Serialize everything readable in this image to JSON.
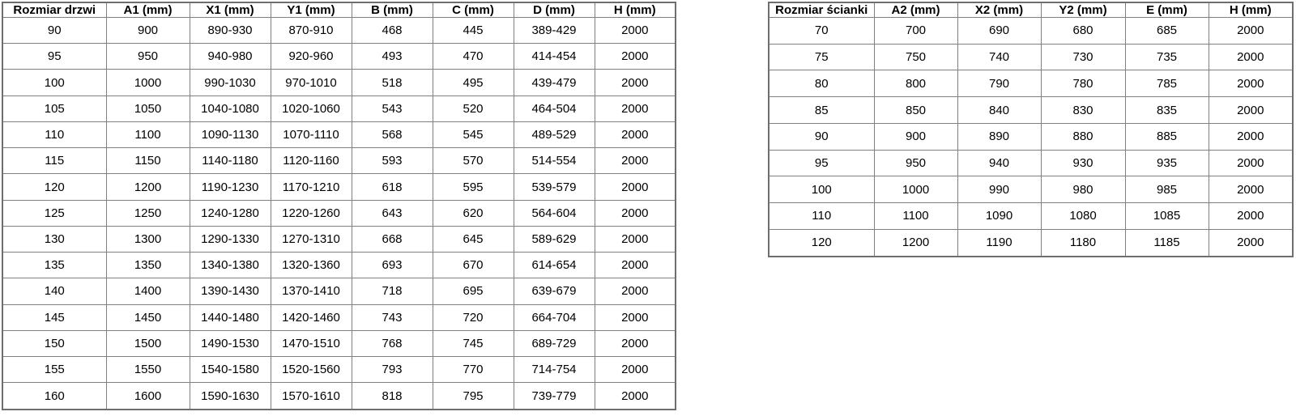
{
  "page": {
    "background_color": "#ffffff",
    "grid_border_color": "#808080",
    "outer_border_color": "#6e6e6e",
    "text_color": "#000000"
  },
  "tables": {
    "doors": {
      "title": "Rozmiar drzwi",
      "headers": [
        "Rozmiar drzwi",
        "A1 (mm)",
        "X1 (mm)",
        "Y1 (mm)",
        "B (mm)",
        "C (mm)",
        "D (mm)",
        "H (mm)"
      ],
      "rows": [
        [
          "90",
          "900",
          "890-930",
          "870-910",
          "468",
          "445",
          "389-429",
          "2000"
        ],
        [
          "95",
          "950",
          "940-980",
          "920-960",
          "493",
          "470",
          "414-454",
          "2000"
        ],
        [
          "100",
          "1000",
          "990-1030",
          "970-1010",
          "518",
          "495",
          "439-479",
          "2000"
        ],
        [
          "105",
          "1050",
          "1040-1080",
          "1020-1060",
          "543",
          "520",
          "464-504",
          "2000"
        ],
        [
          "110",
          "1100",
          "1090-1130",
          "1070-1110",
          "568",
          "545",
          "489-529",
          "2000"
        ],
        [
          "115",
          "1150",
          "1140-1180",
          "1120-1160",
          "593",
          "570",
          "514-554",
          "2000"
        ],
        [
          "120",
          "1200",
          "1190-1230",
          "1170-1210",
          "618",
          "595",
          "539-579",
          "2000"
        ],
        [
          "125",
          "1250",
          "1240-1280",
          "1220-1260",
          "643",
          "620",
          "564-604",
          "2000"
        ],
        [
          "130",
          "1300",
          "1290-1330",
          "1270-1310",
          "668",
          "645",
          "589-629",
          "2000"
        ],
        [
          "135",
          "1350",
          "1340-1380",
          "1320-1360",
          "693",
          "670",
          "614-654",
          "2000"
        ],
        [
          "140",
          "1400",
          "1390-1430",
          "1370-1410",
          "718",
          "695",
          "639-679",
          "2000"
        ],
        [
          "145",
          "1450",
          "1440-1480",
          "1420-1460",
          "743",
          "720",
          "664-704",
          "2000"
        ],
        [
          "150",
          "1500",
          "1490-1530",
          "1470-1510",
          "768",
          "745",
          "689-729",
          "2000"
        ],
        [
          "155",
          "1550",
          "1540-1580",
          "1520-1560",
          "793",
          "770",
          "714-754",
          "2000"
        ],
        [
          "160",
          "1600",
          "1590-1630",
          "1570-1610",
          "818",
          "795",
          "739-779",
          "2000"
        ]
      ]
    },
    "walls": {
      "title": "Rozmiar ścianki",
      "headers": [
        "Rozmiar ścianki",
        "A2 (mm)",
        "X2 (mm)",
        "Y2 (mm)",
        "E (mm)",
        "H (mm)"
      ],
      "rows": [
        [
          "70",
          "700",
          "690",
          "680",
          "685",
          "2000"
        ],
        [
          "75",
          "750",
          "740",
          "730",
          "735",
          "2000"
        ],
        [
          "80",
          "800",
          "790",
          "780",
          "785",
          "2000"
        ],
        [
          "85",
          "850",
          "840",
          "830",
          "835",
          "2000"
        ],
        [
          "90",
          "900",
          "890",
          "880",
          "885",
          "2000"
        ],
        [
          "95",
          "950",
          "940",
          "930",
          "935",
          "2000"
        ],
        [
          "100",
          "1000",
          "990",
          "980",
          "985",
          "2000"
        ],
        [
          "110",
          "1100",
          "1090",
          "1080",
          "1085",
          "2000"
        ],
        [
          "120",
          "1200",
          "1190",
          "1180",
          "1185",
          "2000"
        ]
      ]
    }
  }
}
